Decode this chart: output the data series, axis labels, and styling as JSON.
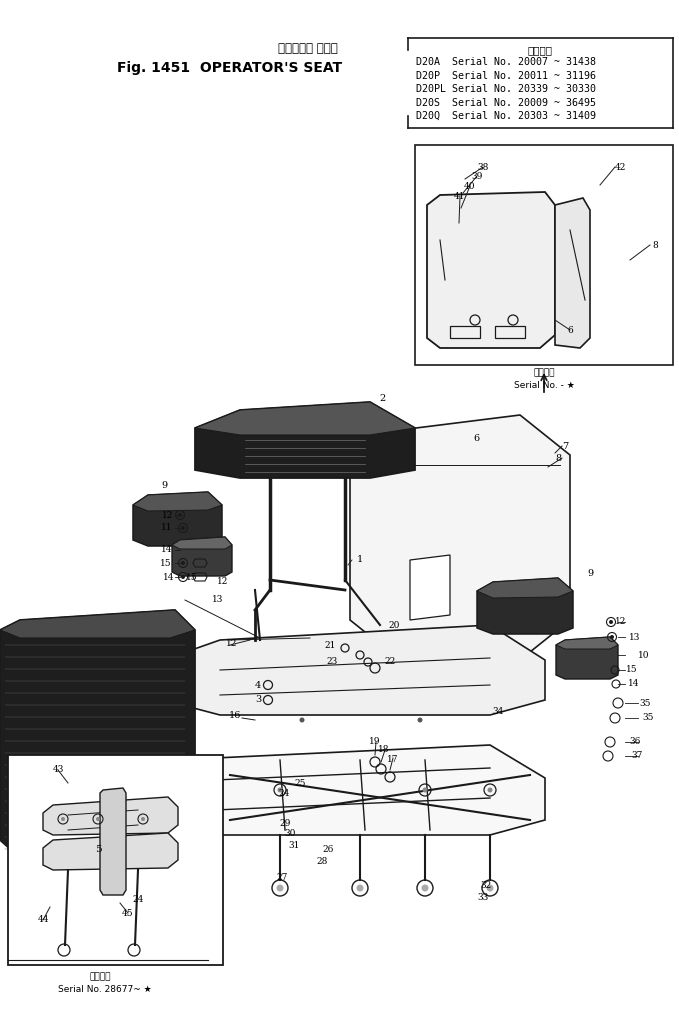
{
  "bg_color": "#ffffff",
  "line_color": "#1a1a1a",
  "title_jp": "オペレータ シート",
  "title_en": "Fig. 1451  OPERATOR'S SEAT",
  "serial_title": "適用号機",
  "serial_lines": [
    "D20A  Serial No. 20007 ~ 31438",
    "D20P  Serial No. 20011 ~ 31196",
    "D20PL Serial No. 20339 ~ 30330",
    "D20S  Serial No. 20009 ~ 36495",
    "D20Q  Serial No. 20303 ~ 31409"
  ],
  "inset_top_serial": "適用号機\nSerial No. - ★",
  "inset_bot_serial": "適用号機\nSerial No. 28677~ ★"
}
